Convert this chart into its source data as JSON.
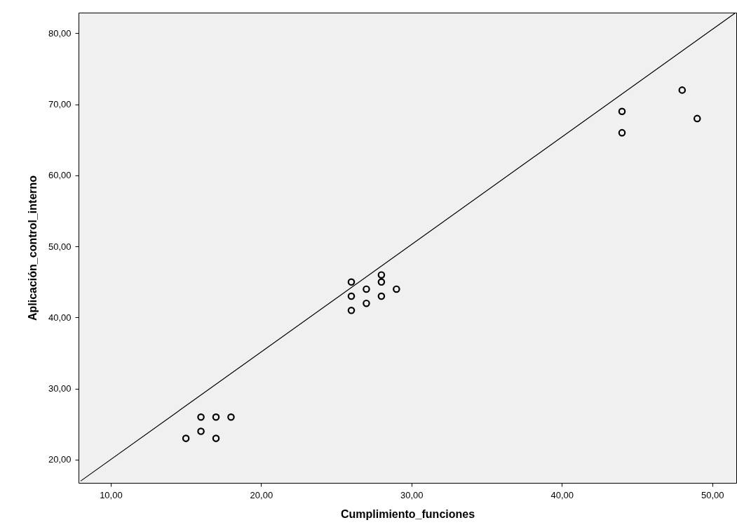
{
  "chart_data": {
    "type": "scatter",
    "xlabel": "Cumplimiento_funciones",
    "ylabel": "Aplicación_control_interno",
    "xlim": [
      7.86,
      51.6
    ],
    "ylim": [
      16.74,
      82.9
    ],
    "xticks": [
      {
        "value": 10,
        "label": "10,00"
      },
      {
        "value": 20,
        "label": "20,00"
      },
      {
        "value": 30,
        "label": "30,00"
      },
      {
        "value": 40,
        "label": "40,00"
      },
      {
        "value": 50,
        "label": "50,00"
      }
    ],
    "yticks": [
      {
        "value": 20,
        "label": "20,00"
      },
      {
        "value": 30,
        "label": "30,00"
      },
      {
        "value": 40,
        "label": "40,00"
      },
      {
        "value": 50,
        "label": "50,00"
      },
      {
        "value": 60,
        "label": "60,00"
      },
      {
        "value": 70,
        "label": "70,00"
      },
      {
        "value": 80,
        "label": "80,00"
      }
    ],
    "grid": false,
    "series": [
      {
        "color": "#000000",
        "marker": "circle",
        "x": [
          15,
          16,
          16,
          17,
          17,
          18,
          26,
          26,
          26,
          27,
          27,
          28,
          28,
          28,
          29,
          44,
          44,
          48,
          49
        ],
        "values": [
          23,
          24,
          26,
          26,
          23,
          26,
          45,
          43,
          41,
          44,
          42,
          46,
          45,
          43,
          44,
          69,
          66,
          72,
          68
        ]
      },
      {
        "type": "line",
        "color": "#000000",
        "line_style": "solid",
        "x": [
          8,
          51.5
        ],
        "values": [
          17,
          82.8
        ]
      }
    ]
  }
}
